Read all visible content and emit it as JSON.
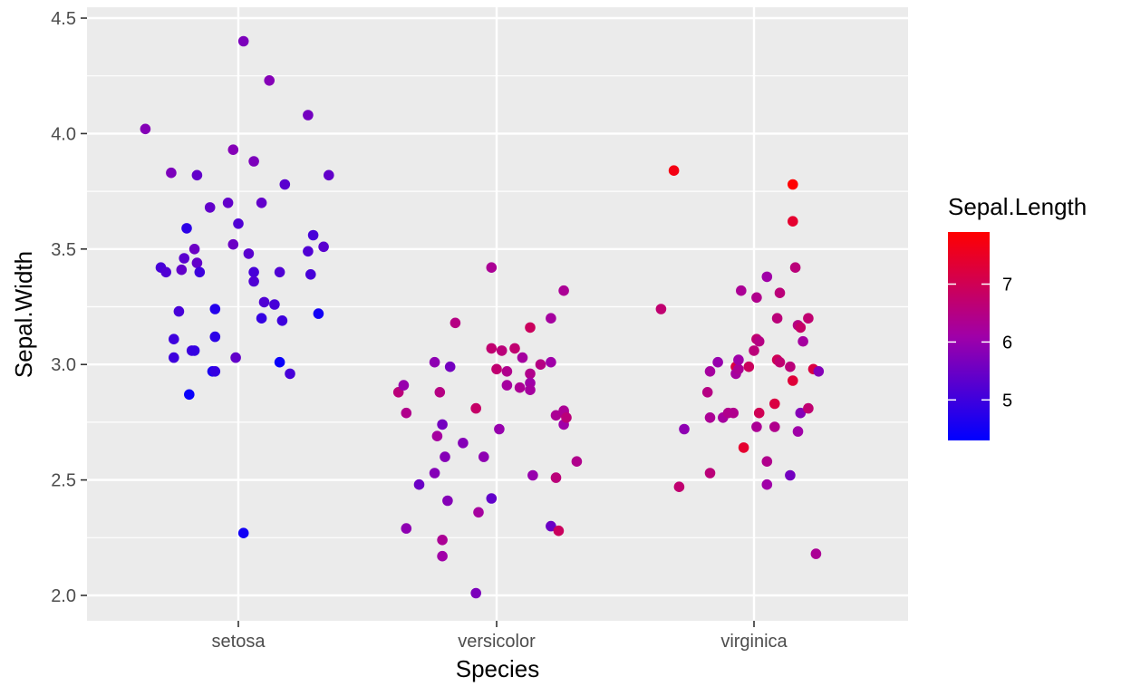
{
  "chart_data": {
    "type": "scatter",
    "xlabel": "Species",
    "ylabel": "Sepal.Width",
    "categories": [
      "setosa",
      "versicolor",
      "virginica"
    ],
    "ylim": [
      1.95,
      4.5
    ],
    "yticks": [
      2.0,
      2.5,
      3.0,
      3.5,
      4.0,
      4.5
    ],
    "ytick_labels": [
      "2.0",
      "2.5",
      "3.0",
      "3.5",
      "4.0",
      "4.5"
    ],
    "grid": true,
    "jitter": "horizontal jitter around each species",
    "color_legend": {
      "title": "Sepal.Length",
      "range": [
        4.3,
        7.9
      ],
      "ticks": [
        5,
        6,
        7
      ],
      "tick_labels": [
        "5",
        "6",
        "7"
      ],
      "low_color": "#0000ff",
      "high_color": "#ff0000",
      "placement": "right"
    },
    "points": [
      {
        "species": "setosa",
        "jitter": -0.36,
        "y": 4.02,
        "sepal_length": 5.8
      },
      {
        "species": "setosa",
        "jitter": -0.3,
        "y": 3.42,
        "sepal_length": 5.1
      },
      {
        "species": "setosa",
        "jitter": -0.28,
        "y": 3.4,
        "sepal_length": 5.2
      },
      {
        "species": "setosa",
        "jitter": -0.26,
        "y": 3.83,
        "sepal_length": 5.7
      },
      {
        "species": "setosa",
        "jitter": -0.25,
        "y": 3.11,
        "sepal_length": 5.0
      },
      {
        "species": "setosa",
        "jitter": -0.25,
        "y": 3.03,
        "sepal_length": 5.0
      },
      {
        "species": "setosa",
        "jitter": -0.23,
        "y": 3.23,
        "sepal_length": 5.1
      },
      {
        "species": "setosa",
        "jitter": -0.22,
        "y": 3.41,
        "sepal_length": 5.4
      },
      {
        "species": "setosa",
        "jitter": -0.21,
        "y": 3.46,
        "sepal_length": 5.3
      },
      {
        "species": "setosa",
        "jitter": -0.2,
        "y": 3.59,
        "sepal_length": 4.8
      },
      {
        "species": "setosa",
        "jitter": -0.19,
        "y": 2.87,
        "sepal_length": 4.4
      },
      {
        "species": "setosa",
        "jitter": -0.18,
        "y": 3.06,
        "sepal_length": 5.0
      },
      {
        "species": "setosa",
        "jitter": -0.17,
        "y": 3.5,
        "sepal_length": 5.5
      },
      {
        "species": "setosa",
        "jitter": -0.17,
        "y": 3.06,
        "sepal_length": 4.9
      },
      {
        "species": "setosa",
        "jitter": -0.16,
        "y": 3.82,
        "sepal_length": 5.4
      },
      {
        "species": "setosa",
        "jitter": -0.16,
        "y": 3.44,
        "sepal_length": 5.4
      },
      {
        "species": "setosa",
        "jitter": -0.15,
        "y": 3.4,
        "sepal_length": 5.0
      },
      {
        "species": "setosa",
        "jitter": -0.11,
        "y": 3.68,
        "sepal_length": 5.4
      },
      {
        "species": "setosa",
        "jitter": -0.1,
        "y": 2.97,
        "sepal_length": 4.6
      },
      {
        "species": "setosa",
        "jitter": -0.09,
        "y": 2.97,
        "sepal_length": 4.9
      },
      {
        "species": "setosa",
        "jitter": -0.09,
        "y": 3.12,
        "sepal_length": 4.8
      },
      {
        "species": "setosa",
        "jitter": -0.09,
        "y": 3.24,
        "sepal_length": 4.7
      },
      {
        "species": "setosa",
        "jitter": -0.04,
        "y": 3.7,
        "sepal_length": 5.4
      },
      {
        "species": "setosa",
        "jitter": -0.02,
        "y": 3.52,
        "sepal_length": 5.5
      },
      {
        "species": "setosa",
        "jitter": -0.02,
        "y": 3.93,
        "sepal_length": 5.8
      },
      {
        "species": "setosa",
        "jitter": -0.01,
        "y": 3.03,
        "sepal_length": 5.4
      },
      {
        "species": "setosa",
        "jitter": 0.0,
        "y": 3.61,
        "sepal_length": 5.2
      },
      {
        "species": "setosa",
        "jitter": 0.02,
        "y": 4.4,
        "sepal_length": 5.7
      },
      {
        "species": "setosa",
        "jitter": 0.02,
        "y": 2.27,
        "sepal_length": 4.5
      },
      {
        "species": "setosa",
        "jitter": 0.04,
        "y": 3.48,
        "sepal_length": 5.3
      },
      {
        "species": "setosa",
        "jitter": 0.06,
        "y": 3.88,
        "sepal_length": 5.7
      },
      {
        "species": "setosa",
        "jitter": 0.06,
        "y": 3.4,
        "sepal_length": 5.1
      },
      {
        "species": "setosa",
        "jitter": 0.06,
        "y": 3.36,
        "sepal_length": 5.2
      },
      {
        "species": "setosa",
        "jitter": 0.09,
        "y": 3.7,
        "sepal_length": 5.4
      },
      {
        "species": "setosa",
        "jitter": 0.09,
        "y": 3.2,
        "sepal_length": 4.9
      },
      {
        "species": "setosa",
        "jitter": 0.1,
        "y": 3.27,
        "sepal_length": 5.2
      },
      {
        "species": "setosa",
        "jitter": 0.12,
        "y": 4.23,
        "sepal_length": 5.8
      },
      {
        "species": "setosa",
        "jitter": 0.14,
        "y": 3.26,
        "sepal_length": 5.1
      },
      {
        "species": "setosa",
        "jitter": 0.16,
        "y": 3.4,
        "sepal_length": 5.2
      },
      {
        "species": "setosa",
        "jitter": 0.16,
        "y": 3.01,
        "sepal_length": 4.4
      },
      {
        "species": "setosa",
        "jitter": 0.17,
        "y": 3.19,
        "sepal_length": 5.0
      },
      {
        "species": "setosa",
        "jitter": 0.18,
        "y": 3.78,
        "sepal_length": 5.3
      },
      {
        "species": "setosa",
        "jitter": 0.2,
        "y": 2.96,
        "sepal_length": 5.1
      },
      {
        "species": "setosa",
        "jitter": 0.27,
        "y": 4.08,
        "sepal_length": 5.6
      },
      {
        "species": "setosa",
        "jitter": 0.27,
        "y": 3.49,
        "sepal_length": 5.2
      },
      {
        "species": "setosa",
        "jitter": 0.28,
        "y": 3.39,
        "sepal_length": 5.1
      },
      {
        "species": "setosa",
        "jitter": 0.29,
        "y": 3.56,
        "sepal_length": 5.1
      },
      {
        "species": "setosa",
        "jitter": 0.31,
        "y": 3.22,
        "sepal_length": 4.5
      },
      {
        "species": "setosa",
        "jitter": 0.33,
        "y": 3.51,
        "sepal_length": 5.3
      },
      {
        "species": "setosa",
        "jitter": 0.35,
        "y": 3.82,
        "sepal_length": 5.4
      },
      {
        "species": "versicolor",
        "jitter": -0.38,
        "y": 2.88,
        "sepal_length": 6.6
      },
      {
        "species": "versicolor",
        "jitter": -0.36,
        "y": 2.91,
        "sepal_length": 6.0
      },
      {
        "species": "versicolor",
        "jitter": -0.35,
        "y": 2.79,
        "sepal_length": 6.4
      },
      {
        "species": "versicolor",
        "jitter": -0.35,
        "y": 2.29,
        "sepal_length": 5.9
      },
      {
        "species": "versicolor",
        "jitter": -0.3,
        "y": 2.48,
        "sepal_length": 5.5
      },
      {
        "species": "versicolor",
        "jitter": -0.24,
        "y": 2.53,
        "sepal_length": 5.8
      },
      {
        "species": "versicolor",
        "jitter": -0.24,
        "y": 3.01,
        "sepal_length": 5.9
      },
      {
        "species": "versicolor",
        "jitter": -0.23,
        "y": 2.69,
        "sepal_length": 6.2
      },
      {
        "species": "versicolor",
        "jitter": -0.22,
        "y": 2.88,
        "sepal_length": 6.5
      },
      {
        "species": "versicolor",
        "jitter": -0.21,
        "y": 2.24,
        "sepal_length": 6.3
      },
      {
        "species": "versicolor",
        "jitter": -0.21,
        "y": 2.17,
        "sepal_length": 6.1
      },
      {
        "species": "versicolor",
        "jitter": -0.21,
        "y": 2.74,
        "sepal_length": 5.6
      },
      {
        "species": "versicolor",
        "jitter": -0.2,
        "y": 2.6,
        "sepal_length": 5.8
      },
      {
        "species": "versicolor",
        "jitter": -0.19,
        "y": 2.41,
        "sepal_length": 5.8
      },
      {
        "species": "versicolor",
        "jitter": -0.18,
        "y": 2.99,
        "sepal_length": 5.6
      },
      {
        "species": "versicolor",
        "jitter": -0.16,
        "y": 3.18,
        "sepal_length": 6.5
      },
      {
        "species": "versicolor",
        "jitter": -0.13,
        "y": 2.66,
        "sepal_length": 5.8
      },
      {
        "species": "versicolor",
        "jitter": -0.08,
        "y": 2.81,
        "sepal_length": 6.8
      },
      {
        "species": "versicolor",
        "jitter": -0.08,
        "y": 2.01,
        "sepal_length": 5.7
      },
      {
        "species": "versicolor",
        "jitter": -0.07,
        "y": 2.36,
        "sepal_length": 6.2
      },
      {
        "species": "versicolor",
        "jitter": -0.05,
        "y": 2.6,
        "sepal_length": 5.9
      },
      {
        "species": "versicolor",
        "jitter": -0.02,
        "y": 2.42,
        "sepal_length": 5.4
      },
      {
        "species": "versicolor",
        "jitter": -0.02,
        "y": 3.42,
        "sepal_length": 6.3
      },
      {
        "species": "versicolor",
        "jitter": -0.02,
        "y": 3.07,
        "sepal_length": 6.7
      },
      {
        "species": "versicolor",
        "jitter": 0.0,
        "y": 2.98,
        "sepal_length": 6.7
      },
      {
        "species": "versicolor",
        "jitter": 0.01,
        "y": 2.72,
        "sepal_length": 6.0
      },
      {
        "species": "versicolor",
        "jitter": 0.02,
        "y": 3.06,
        "sepal_length": 6.6
      },
      {
        "species": "versicolor",
        "jitter": 0.04,
        "y": 2.97,
        "sepal_length": 6.4
      },
      {
        "species": "versicolor",
        "jitter": 0.04,
        "y": 2.91,
        "sepal_length": 6.2
      },
      {
        "species": "versicolor",
        "jitter": 0.07,
        "y": 3.07,
        "sepal_length": 6.7
      },
      {
        "species": "versicolor",
        "jitter": 0.09,
        "y": 2.9,
        "sepal_length": 6.3
      },
      {
        "species": "versicolor",
        "jitter": 0.1,
        "y": 3.03,
        "sepal_length": 6.2
      },
      {
        "species": "versicolor",
        "jitter": 0.13,
        "y": 3.16,
        "sepal_length": 6.9
      },
      {
        "species": "versicolor",
        "jitter": 0.13,
        "y": 2.96,
        "sepal_length": 6.4
      },
      {
        "species": "versicolor",
        "jitter": 0.13,
        "y": 2.92,
        "sepal_length": 6.1
      },
      {
        "species": "versicolor",
        "jitter": 0.13,
        "y": 2.89,
        "sepal_length": 6.2
      },
      {
        "species": "versicolor",
        "jitter": 0.14,
        "y": 2.52,
        "sepal_length": 6.0
      },
      {
        "species": "versicolor",
        "jitter": 0.17,
        "y": 3.0,
        "sepal_length": 6.5
      },
      {
        "species": "versicolor",
        "jitter": 0.21,
        "y": 3.2,
        "sepal_length": 6.2
      },
      {
        "species": "versicolor",
        "jitter": 0.21,
        "y": 3.01,
        "sepal_length": 6.1
      },
      {
        "species": "versicolor",
        "jitter": 0.21,
        "y": 2.3,
        "sepal_length": 5.5
      },
      {
        "species": "versicolor",
        "jitter": 0.23,
        "y": 2.78,
        "sepal_length": 6.3
      },
      {
        "species": "versicolor",
        "jitter": 0.23,
        "y": 2.51,
        "sepal_length": 6.6
      },
      {
        "species": "versicolor",
        "jitter": 0.24,
        "y": 2.28,
        "sepal_length": 6.9
      },
      {
        "species": "versicolor",
        "jitter": 0.26,
        "y": 2.74,
        "sepal_length": 6.1
      },
      {
        "species": "versicolor",
        "jitter": 0.26,
        "y": 2.79,
        "sepal_length": 6.4
      },
      {
        "species": "versicolor",
        "jitter": 0.26,
        "y": 3.32,
        "sepal_length": 6.3
      },
      {
        "species": "versicolor",
        "jitter": 0.26,
        "y": 2.8,
        "sepal_length": 6.3
      },
      {
        "species": "versicolor",
        "jitter": 0.27,
        "y": 2.77,
        "sepal_length": 6.6
      },
      {
        "species": "versicolor",
        "jitter": 0.31,
        "y": 2.58,
        "sepal_length": 6.4
      },
      {
        "species": "virginica",
        "jitter": -0.36,
        "y": 3.24,
        "sepal_length": 6.7
      },
      {
        "species": "virginica",
        "jitter": -0.31,
        "y": 3.84,
        "sepal_length": 7.7
      },
      {
        "species": "virginica",
        "jitter": -0.29,
        "y": 2.47,
        "sepal_length": 6.7
      },
      {
        "species": "virginica",
        "jitter": -0.27,
        "y": 2.72,
        "sepal_length": 5.9
      },
      {
        "species": "virginica",
        "jitter": -0.18,
        "y": 2.88,
        "sepal_length": 6.5
      },
      {
        "species": "virginica",
        "jitter": -0.17,
        "y": 2.97,
        "sepal_length": 6.2
      },
      {
        "species": "virginica",
        "jitter": -0.17,
        "y": 2.53,
        "sepal_length": 6.6
      },
      {
        "species": "virginica",
        "jitter": -0.17,
        "y": 2.77,
        "sepal_length": 6.3
      },
      {
        "species": "virginica",
        "jitter": -0.14,
        "y": 3.01,
        "sepal_length": 6.0
      },
      {
        "species": "virginica",
        "jitter": -0.12,
        "y": 2.77,
        "sepal_length": 6.2
      },
      {
        "species": "virginica",
        "jitter": -0.1,
        "y": 2.79,
        "sepal_length": 6.4
      },
      {
        "species": "virginica",
        "jitter": -0.08,
        "y": 2.79,
        "sepal_length": 6.4
      },
      {
        "species": "virginica",
        "jitter": -0.07,
        "y": 2.99,
        "sepal_length": 7.2
      },
      {
        "species": "virginica",
        "jitter": -0.07,
        "y": 2.96,
        "sepal_length": 6.2
      },
      {
        "species": "virginica",
        "jitter": -0.06,
        "y": 2.98,
        "sepal_length": 6.3
      },
      {
        "species": "virginica",
        "jitter": -0.06,
        "y": 3.02,
        "sepal_length": 6.1
      },
      {
        "species": "virginica",
        "jitter": -0.05,
        "y": 3.32,
        "sepal_length": 6.3
      },
      {
        "species": "virginica",
        "jitter": -0.04,
        "y": 2.64,
        "sepal_length": 7.4
      },
      {
        "species": "virginica",
        "jitter": -0.02,
        "y": 2.99,
        "sepal_length": 6.9
      },
      {
        "species": "virginica",
        "jitter": 0.0,
        "y": 3.06,
        "sepal_length": 6.6
      },
      {
        "species": "virginica",
        "jitter": 0.01,
        "y": 2.73,
        "sepal_length": 6.3
      },
      {
        "species": "virginica",
        "jitter": 0.01,
        "y": 3.29,
        "sepal_length": 6.4
      },
      {
        "species": "virginica",
        "jitter": 0.01,
        "y": 3.11,
        "sepal_length": 6.7
      },
      {
        "species": "virginica",
        "jitter": 0.02,
        "y": 3.1,
        "sepal_length": 6.5
      },
      {
        "species": "virginica",
        "jitter": 0.02,
        "y": 2.79,
        "sepal_length": 7.0
      },
      {
        "species": "virginica",
        "jitter": 0.05,
        "y": 3.38,
        "sepal_length": 6.1
      },
      {
        "species": "virginica",
        "jitter": 0.05,
        "y": 2.58,
        "sepal_length": 6.4
      },
      {
        "species": "virginica",
        "jitter": 0.05,
        "y": 2.48,
        "sepal_length": 6.1
      },
      {
        "species": "virginica",
        "jitter": 0.08,
        "y": 2.73,
        "sepal_length": 6.4
      },
      {
        "species": "virginica",
        "jitter": 0.08,
        "y": 2.83,
        "sepal_length": 7.2
      },
      {
        "species": "virginica",
        "jitter": 0.09,
        "y": 3.2,
        "sepal_length": 6.6
      },
      {
        "species": "virginica",
        "jitter": 0.09,
        "y": 3.02,
        "sepal_length": 7.0
      },
      {
        "species": "virginica",
        "jitter": 0.1,
        "y": 3.01,
        "sepal_length": 6.7
      },
      {
        "species": "virginica",
        "jitter": 0.1,
        "y": 3.31,
        "sepal_length": 6.6
      },
      {
        "species": "virginica",
        "jitter": 0.14,
        "y": 2.52,
        "sepal_length": 5.6
      },
      {
        "species": "virginica",
        "jitter": 0.14,
        "y": 2.99,
        "sepal_length": 6.6
      },
      {
        "species": "virginica",
        "jitter": 0.15,
        "y": 3.78,
        "sepal_length": 7.9
      },
      {
        "species": "virginica",
        "jitter": 0.15,
        "y": 3.62,
        "sepal_length": 7.4
      },
      {
        "species": "virginica",
        "jitter": 0.15,
        "y": 2.93,
        "sepal_length": 7.3
      },
      {
        "species": "virginica",
        "jitter": 0.16,
        "y": 3.42,
        "sepal_length": 6.6
      },
      {
        "species": "virginica",
        "jitter": 0.17,
        "y": 3.17,
        "sepal_length": 6.5
      },
      {
        "species": "virginica",
        "jitter": 0.17,
        "y": 2.71,
        "sepal_length": 6.1
      },
      {
        "species": "virginica",
        "jitter": 0.18,
        "y": 3.16,
        "sepal_length": 6.8
      },
      {
        "species": "virginica",
        "jitter": 0.18,
        "y": 2.79,
        "sepal_length": 5.8
      },
      {
        "species": "virginica",
        "jitter": 0.19,
        "y": 3.1,
        "sepal_length": 6.2
      },
      {
        "species": "virginica",
        "jitter": 0.21,
        "y": 2.81,
        "sepal_length": 6.7
      },
      {
        "species": "virginica",
        "jitter": 0.21,
        "y": 3.2,
        "sepal_length": 6.7
      },
      {
        "species": "virginica",
        "jitter": 0.23,
        "y": 2.98,
        "sepal_length": 7.2
      },
      {
        "species": "virginica",
        "jitter": 0.24,
        "y": 2.18,
        "sepal_length": 6.3
      },
      {
        "species": "virginica",
        "jitter": 0.25,
        "y": 2.97,
        "sepal_length": 5.8
      }
    ]
  }
}
